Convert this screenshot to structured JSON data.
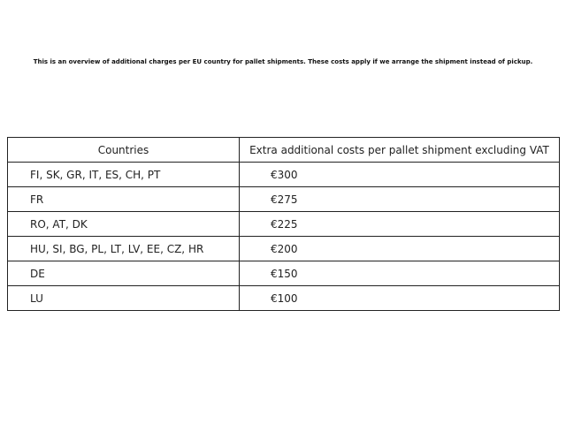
{
  "note": "This is an overview of additional charges per EU country for pallet shipments. These costs apply if we arrange the shipment instead of pickup.",
  "table": {
    "headers": [
      "Countries",
      "Extra additional costs per pallet shipment excluding VAT"
    ],
    "rows": [
      [
        "FI, SK, GR, IT, ES, CH, PT",
        "€300"
      ],
      [
        "FR",
        "€275"
      ],
      [
        "RO, AT, DK",
        "€225"
      ],
      [
        "HU, SI, BG, PL, LT, LV, EE, CZ, HR",
        "€200"
      ],
      [
        "DE",
        "€150"
      ],
      [
        "LU",
        "€100"
      ]
    ]
  }
}
